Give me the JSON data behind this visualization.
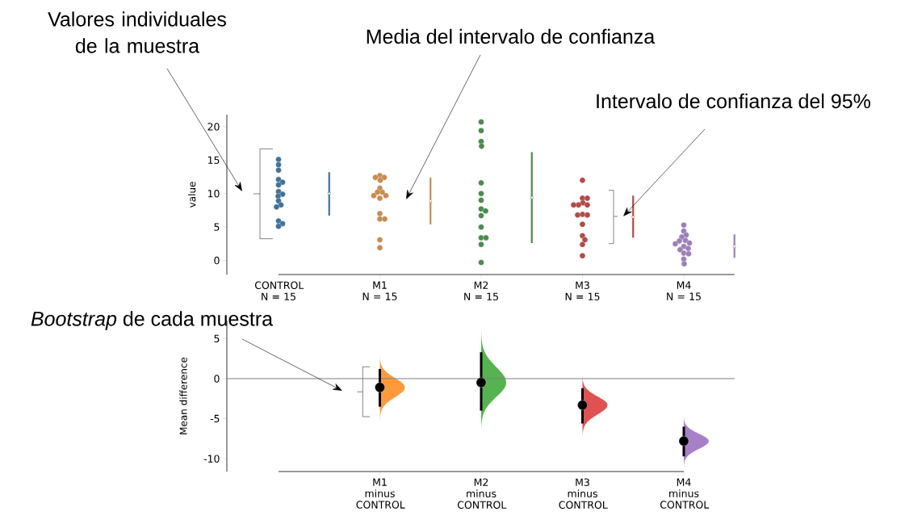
{
  "chart_data": [
    {
      "type": "scatter",
      "categories": [
        "CONTROL N = 15",
        null,
        "M1 N = 15",
        null,
        "M2 N = 15",
        null,
        "M3 N = 15",
        null,
        "M4 N = 15",
        null
      ],
      "ylabel": "value",
      "ylim": [
        -2.1,
        21.8
      ],
      "yticks": [
        0,
        5,
        10,
        15,
        20
      ],
      "marker": "circle",
      "annotations": [
        "Valores individuales de la muestra",
        "Media del intervalo de confianza",
        "Intervalo de confianza del 95%"
      ],
      "series": [
        {
          "color": "#41729a",
          "x": [
            "CONTROL N = 15",
            "CONTROL N = 15",
            "CONTROL N = 15",
            "CONTROL N = 15",
            "CONTROL N = 15",
            "CONTROL N = 15",
            "CONTROL N = 15",
            "CONTROL N = 15",
            "CONTROL N = 15",
            "CONTROL N = 15",
            "CONTROL N = 15",
            "CONTROL N = 15",
            "CONTROL N = 15",
            "CONTROL N = 15",
            "CONTROL N = 15"
          ],
          "values": [
            15.1,
            14.3,
            13.5,
            12.1,
            11.7,
            11.3,
            10.3,
            9.9,
            9.6,
            8.9,
            8.3,
            8.0,
            5.9,
            5.5,
            5.1
          ]
        },
        {
          "color": "#c98b50",
          "x": [
            "M1 N = 15",
            "M1 N = 15",
            "M1 N = 15",
            "M1 N = 15",
            "M1 N = 15",
            "M1 N = 15",
            "M1 N = 15",
            "M1 N = 15",
            "M1 N = 15",
            "M1 N = 15",
            "M1 N = 15",
            "M1 N = 15",
            "M1 N = 15",
            "M1 N = 15",
            "M1 N = 15"
          ],
          "values": [
            12.7,
            12.4,
            12.4,
            12.0,
            10.8,
            10.2,
            10.2,
            9.7,
            9.7,
            9.3,
            7.0,
            6.2,
            6.2,
            3.1,
            1.9
          ]
        },
        {
          "color": "#4b8b4e",
          "x": [
            "M2 N = 15",
            "M2 N = 15",
            "M2 N = 15",
            "M2 N = 15",
            "M2 N = 15",
            "M2 N = 15",
            "M2 N = 15",
            "M2 N = 15",
            "M2 N = 15",
            "M2 N = 15",
            "M2 N = 15",
            "M2 N = 15",
            "M2 N = 15",
            "M2 N = 15",
            "M2 N = 15"
          ],
          "values": [
            20.7,
            19.4,
            17.8,
            17.1,
            11.6,
            10.0,
            9.0,
            7.7,
            7.4,
            6.7,
            5.0,
            3.4,
            3.4,
            2.4,
            -0.3
          ]
        },
        {
          "color": "#b24a48",
          "x": [
            "M3 N = 15",
            "M3 N = 15",
            "M3 N = 15",
            "M3 N = 15",
            "M3 N = 15",
            "M3 N = 15",
            "M3 N = 15",
            "M3 N = 15",
            "M3 N = 15",
            "M3 N = 15",
            "M3 N = 15",
            "M3 N = 15",
            "M3 N = 15",
            "M3 N = 15",
            "M3 N = 15"
          ],
          "values": [
            12.0,
            9.3,
            9.3,
            8.6,
            8.3,
            8.3,
            8.3,
            6.9,
            6.8,
            6.8,
            5.4,
            3.7,
            3.1,
            2.4,
            0.7
          ]
        },
        {
          "color": "#9b80b8",
          "x": [
            "M4 N = 15",
            "M4 N = 15",
            "M4 N = 15",
            "M4 N = 15",
            "M4 N = 15",
            "M4 N = 15",
            "M4 N = 15",
            "M4 N = 15",
            "M4 N = 15",
            "M4 N = 15",
            "M4 N = 15",
            "M4 N = 15",
            "M4 N = 15",
            "M4 N = 15",
            "M4 N = 15"
          ],
          "values": [
            5.3,
            4.4,
            3.8,
            3.5,
            3.0,
            2.9,
            2.6,
            2.5,
            2.1,
            1.8,
            1.6,
            1.1,
            1.0,
            0.2,
            -0.5
          ]
        },
        {
          "marker": "square",
          "colors": [
            "#41729a",
            "#41729a",
            "#c98b50",
            "#c98b50",
            "#4b8b4e",
            "#4b8b4e",
            "#b24a48",
            "#b24a48",
            "#9b80b8",
            "#9b80b8"
          ],
          "values": [
            null,
            10.0,
            null,
            8.9,
            null,
            9.4,
            null,
            6.5,
            null,
            2.1
          ],
          "errors": [
            null,
            [
              6.7,
              13.2
            ],
            null,
            [
              5.4,
              12.4
            ],
            null,
            [
              2.6,
              16.2
            ],
            null,
            [
              3.4,
              9.7
            ],
            null,
            [
              0.4,
              3.9
            ]
          ]
        }
      ]
    },
    {
      "type": "scatter",
      "categories": [
        null,
        "M1 minus CONTROL",
        "M2 minus CONTROL",
        "M3 minus CONTROL",
        "M4 minus CONTROL"
      ],
      "ylabel": "Mean difference",
      "ylim": [
        -11.6,
        7.25
      ],
      "yticks": [
        -10,
        -5,
        0,
        5
      ],
      "ref_lines": [
        {
          "axis": "y",
          "value": 0,
          "color": "#808080"
        }
      ],
      "annotations": [
        "*Bootstrap* de cada muestra"
      ],
      "series": [
        {
          "marker": "circle",
          "color": "#000000",
          "x": [
            "M1 minus CONTROL",
            "M2 minus CONTROL",
            "M3 minus CONTROL",
            "M4 minus CONTROL"
          ],
          "values": [
            -1.1,
            -0.5,
            -3.3,
            -7.8
          ],
          "errors": [
            [
              -3.5,
              1.2
            ],
            [
              -4.0,
              3.3
            ],
            [
              -5.6,
              -1.2
            ],
            [
              -9.7,
              -6.0
            ]
          ]
        }
      ]
    }
  ]
}
